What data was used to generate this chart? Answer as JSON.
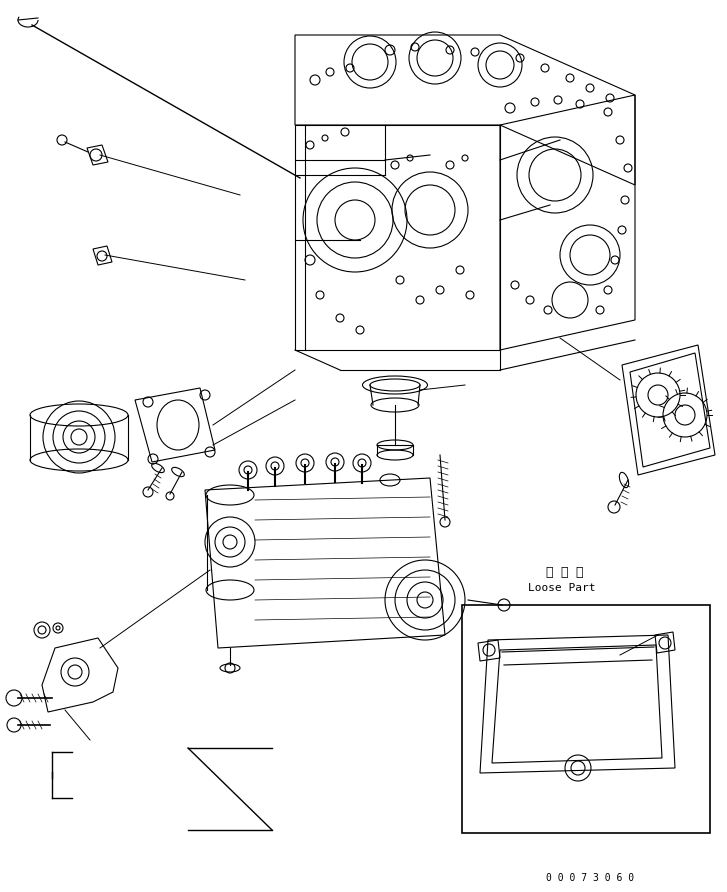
{
  "background_color": "#ffffff",
  "border_color": "#000000",
  "text_color": "#000000",
  "loose_part_label_jp": "同 梱 品",
  "loose_part_label_en": "Loose Part",
  "part_number": "0 0 0 7 3 0 6 0",
  "figsize": [
    7.27,
    8.92
  ],
  "dpi": 100
}
